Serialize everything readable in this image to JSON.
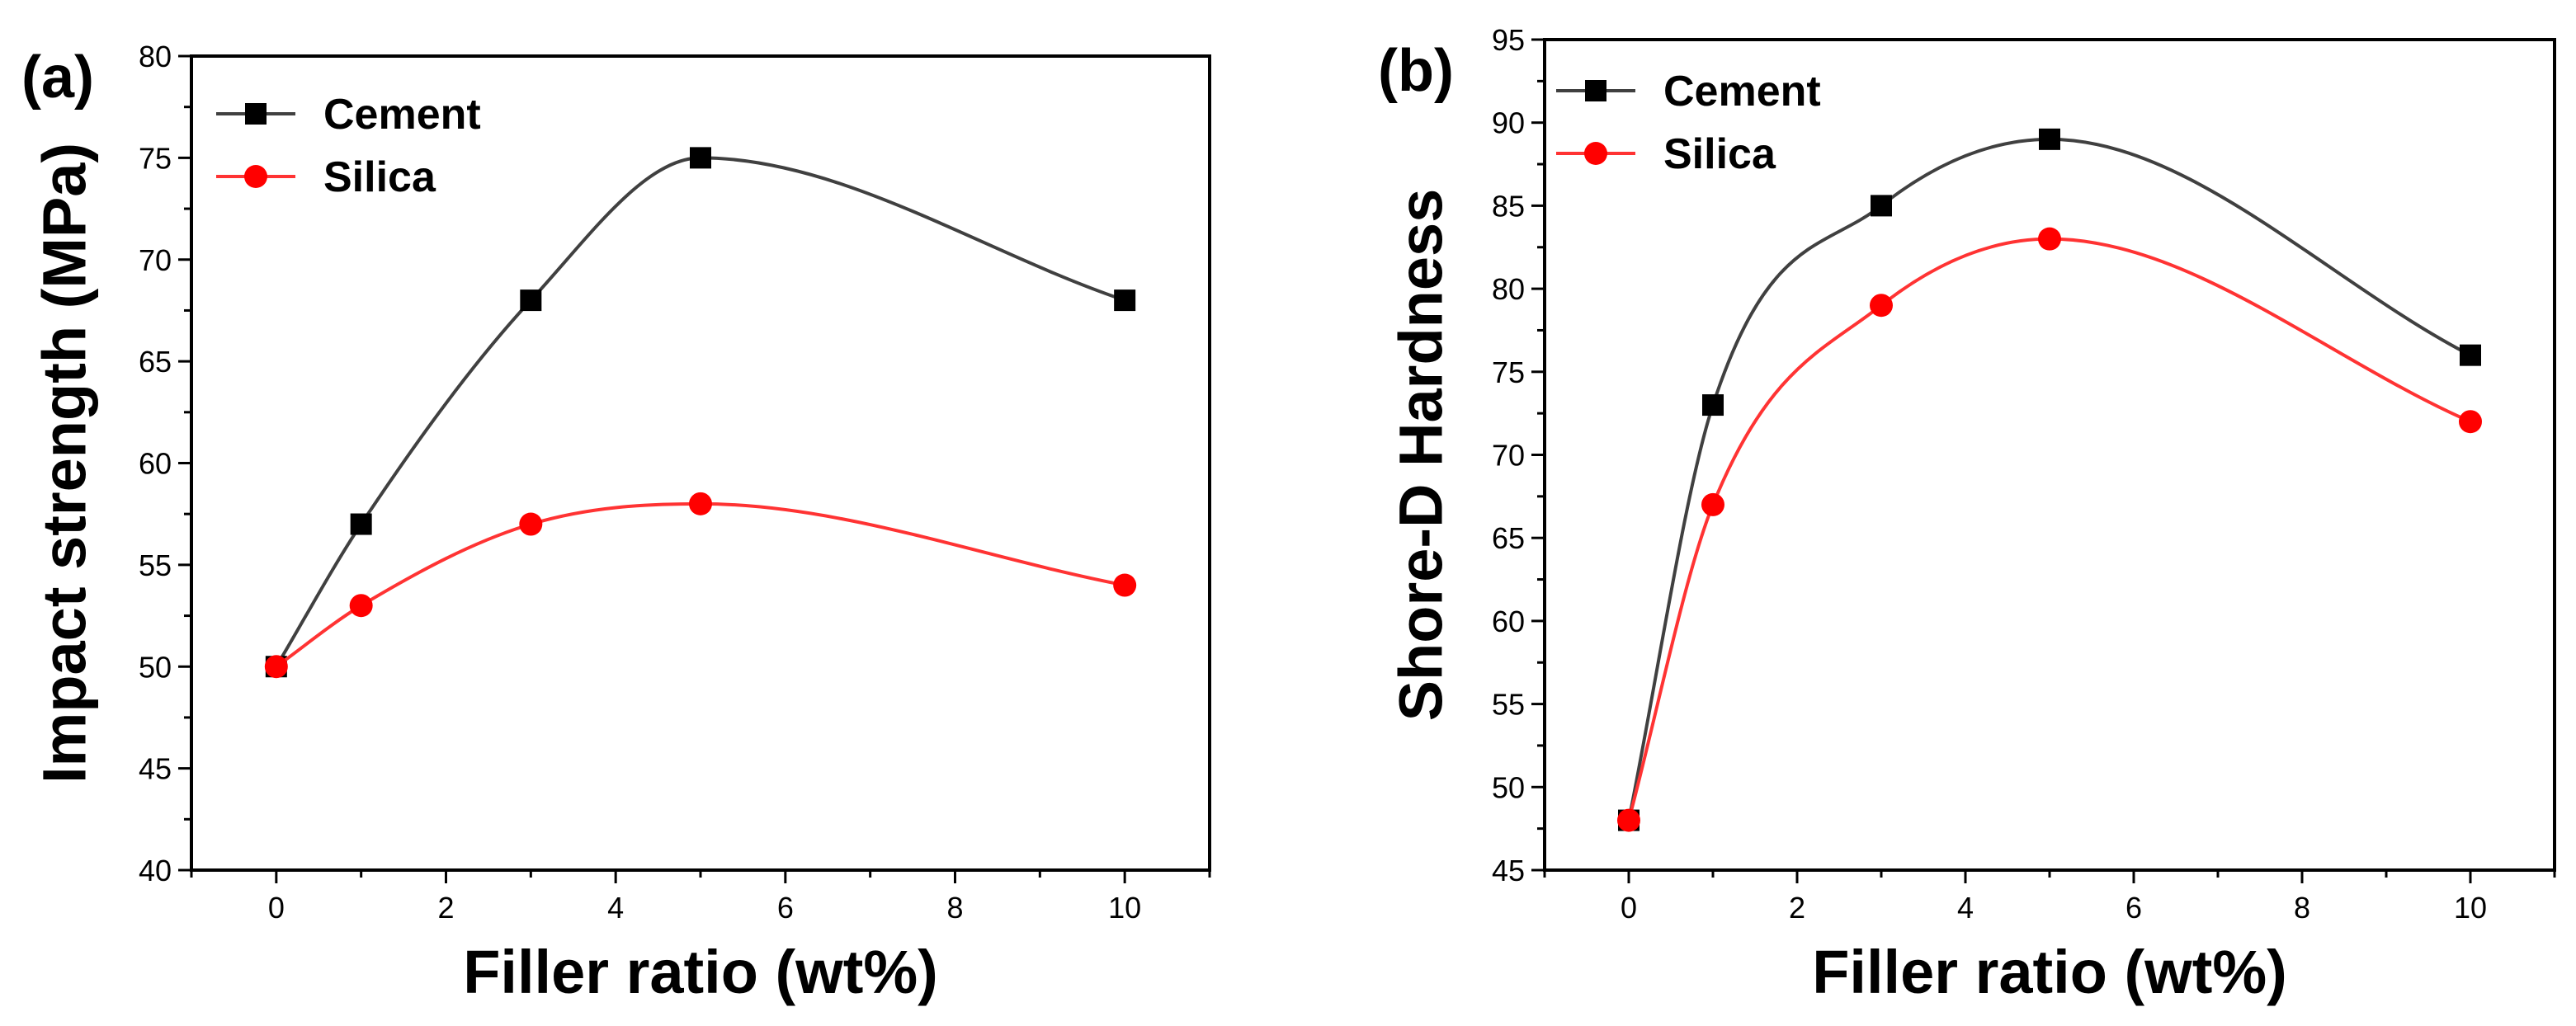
{
  "chart_data": [
    {
      "type": "line",
      "panel_label": "(a)",
      "title": "",
      "xlabel": "Filler ratio (wt%)",
      "ylabel": "Impact strength (MPa)",
      "xlim": [
        -1,
        11
      ],
      "ylim": [
        40,
        80
      ],
      "xticks": [
        0,
        2,
        4,
        6,
        8,
        10
      ],
      "yticks": [
        40,
        45,
        50,
        55,
        60,
        65,
        70,
        75,
        80
      ],
      "grid": false,
      "legend_position": "top-left",
      "series": [
        {
          "name": "Cement",
          "color": "#404040",
          "marker": "square",
          "marker_color": "#000000",
          "x": [
            0,
            1,
            3,
            5,
            10
          ],
          "y": [
            50,
            57,
            68,
            75,
            68
          ]
        },
        {
          "name": "Silica",
          "color": "#ff3333",
          "marker": "circle",
          "marker_color": "#ff0000",
          "x": [
            0,
            1,
            3,
            5,
            10
          ],
          "y": [
            50,
            53,
            57,
            58,
            54
          ]
        }
      ]
    },
    {
      "type": "line",
      "panel_label": "(b)",
      "title": "",
      "xlabel": "Filler ratio (wt%)",
      "ylabel": "Shore-D Hardness",
      "xlim": [
        -1,
        11
      ],
      "ylim": [
        45,
        95
      ],
      "xticks": [
        0,
        2,
        4,
        6,
        8,
        10
      ],
      "yticks": [
        45,
        50,
        55,
        60,
        65,
        70,
        75,
        80,
        85,
        90,
        95
      ],
      "grid": false,
      "legend_position": "top-left",
      "series": [
        {
          "name": "Cement",
          "color": "#404040",
          "marker": "square",
          "marker_color": "#000000",
          "x": [
            0,
            1,
            3,
            5,
            10
          ],
          "y": [
            48,
            73,
            85,
            89,
            76
          ]
        },
        {
          "name": "Silica",
          "color": "#ff3333",
          "marker": "circle",
          "marker_color": "#ff0000",
          "x": [
            0,
            1,
            3,
            5,
            10
          ],
          "y": [
            48,
            67,
            79,
            83,
            72
          ]
        }
      ]
    }
  ]
}
